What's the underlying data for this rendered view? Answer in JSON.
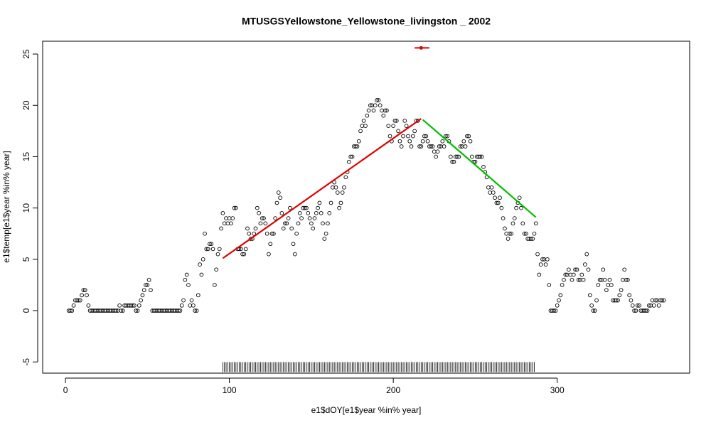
{
  "chart_data": {
    "type": "scatter",
    "title": "MTUSGSYellowstone_Yellowstone_livingston _ 2002",
    "x_label": "e1$dOY[e1$year %in% year]",
    "y_label": "e1$temp[e1$year %in% year]",
    "xlim": [
      -13.9,
      380.8
    ],
    "ylim": [
      -6.09,
      26.25
    ],
    "xticks": [
      0,
      100,
      200,
      300
    ],
    "yticks": [
      -5,
      0,
      5,
      10,
      15,
      20,
      25
    ],
    "point_color": "#000000",
    "x": [
      2,
      3,
      4,
      5,
      6,
      7,
      8,
      9,
      10,
      11,
      12,
      13,
      14,
      15,
      16,
      17,
      18,
      19,
      20,
      21,
      22,
      23,
      24,
      25,
      26,
      27,
      28,
      29,
      30,
      31,
      32,
      33,
      34,
      35,
      36,
      37,
      38,
      39,
      40,
      41,
      42,
      43,
      44,
      45,
      46,
      47,
      48,
      49,
      50,
      51,
      52,
      53,
      54,
      55,
      56,
      57,
      58,
      59,
      60,
      61,
      62,
      63,
      64,
      65,
      66,
      67,
      68,
      69,
      70,
      71,
      72,
      73,
      74,
      75,
      76,
      77,
      78,
      79,
      80,
      81,
      82,
      83,
      84,
      85,
      86,
      87,
      88,
      89,
      90,
      91,
      92,
      93,
      94,
      95,
      96,
      97,
      98,
      99,
      100,
      101,
      102,
      103,
      104,
      105,
      106,
      107,
      108,
      109,
      110,
      111,
      112,
      113,
      114,
      115,
      116,
      117,
      118,
      119,
      120,
      121,
      122,
      123,
      124,
      125,
      126,
      127,
      128,
      129,
      130,
      131,
      132,
      133,
      134,
      135,
      136,
      137,
      138,
      139,
      140,
      141,
      142,
      143,
      144,
      145,
      146,
      147,
      148,
      149,
      150,
      151,
      152,
      153,
      154,
      155,
      156,
      157,
      158,
      159,
      160,
      161,
      162,
      163,
      164,
      165,
      166,
      167,
      168,
      169,
      170,
      171,
      172,
      173,
      174,
      175,
      176,
      177,
      178,
      179,
      180,
      181,
      182,
      183,
      184,
      185,
      186,
      187,
      188,
      189,
      190,
      191,
      192,
      193,
      194,
      195,
      196,
      197,
      198,
      199,
      200,
      201,
      202,
      203,
      204,
      205,
      206,
      207,
      208,
      209,
      210,
      211,
      212,
      213,
      214,
      215,
      216,
      217,
      218,
      219,
      220,
      221,
      222,
      223,
      224,
      225,
      226,
      227,
      228,
      229,
      230,
      231,
      232,
      233,
      234,
      235,
      236,
      237,
      238,
      239,
      240,
      241,
      242,
      243,
      244,
      245,
      246,
      247,
      248,
      249,
      250,
      251,
      252,
      253,
      254,
      255,
      256,
      257,
      258,
      259,
      260,
      261,
      262,
      263,
      264,
      265,
      266,
      267,
      268,
      269,
      270,
      271,
      272,
      273,
      274,
      275,
      276,
      277,
      278,
      279,
      280,
      281,
      282,
      283,
      284,
      285,
      286,
      287,
      288,
      289,
      290,
      291,
      292,
      293,
      294,
      295,
      296,
      297,
      298,
      299,
      300,
      301,
      302,
      303,
      304,
      305,
      306,
      307,
      308,
      309,
      310,
      311,
      312,
      313,
      314,
      315,
      316,
      317,
      318,
      319,
      320,
      321,
      322,
      323,
      324,
      325,
      326,
      327,
      328,
      329,
      330,
      331,
      332,
      333,
      334,
      335,
      336,
      337,
      338,
      339,
      340,
      341,
      342,
      343,
      344,
      345,
      346,
      347,
      348,
      349,
      350,
      351,
      352,
      353,
      354,
      355,
      356,
      357,
      358,
      359,
      360,
      361,
      362,
      363,
      364,
      365
    ],
    "values": [
      0,
      0,
      0,
      0.5,
      1,
      1,
      1,
      1,
      1.5,
      2,
      2,
      1.5,
      0.5,
      0,
      0,
      0,
      0,
      0,
      0,
      0,
      0,
      0,
      0,
      0,
      0,
      0,
      0,
      0,
      0,
      0,
      0,
      0.5,
      0,
      0,
      0.5,
      0.5,
      0.5,
      0.5,
      0.5,
      0.5,
      0.5,
      0,
      0,
      0.5,
      1,
      1.5,
      2,
      2.5,
      2.5,
      3,
      2,
      0,
      0,
      0,
      0,
      0,
      0,
      0,
      0,
      0,
      0,
      0,
      0,
      0,
      0,
      0,
      0,
      0,
      0,
      0.5,
      1,
      3,
      3.5,
      2.5,
      0.5,
      1,
      0.5,
      0,
      0,
      1.5,
      4.5,
      3.5,
      5,
      7.5,
      6,
      6,
      6.5,
      6.5,
      6,
      2.5,
      4,
      5.5,
      6,
      8,
      9.5,
      8.5,
      9,
      8.5,
      9,
      8.5,
      9,
      10,
      10,
      6,
      6,
      6,
      5.5,
      5.5,
      6,
      8,
      7.5,
      7,
      7,
      7.5,
      8,
      10,
      9.5,
      8.5,
      9,
      9,
      8.5,
      7.5,
      5.5,
      6.5,
      7.5,
      7.5,
      9,
      10.5,
      11.5,
      11,
      9.5,
      8,
      8.5,
      8.5,
      9,
      10,
      8,
      6.5,
      5.5,
      7.5,
      8.5,
      9.5,
      9,
      10,
      10,
      10,
      9.5,
      9,
      8.5,
      8,
      9,
      9.5,
      10,
      10.5,
      9.5,
      8.5,
      7,
      7.5,
      8.5,
      9.5,
      10.5,
      12,
      12.5,
      12,
      11.5,
      10,
      10.5,
      11.5,
      12,
      13,
      13.5,
      14.5,
      15,
      15,
      16,
      16,
      16,
      16.5,
      17.5,
      18,
      18.5,
      18,
      19,
      19.5,
      20,
      20,
      19.5,
      20,
      20.5,
      20.5,
      20,
      19.5,
      19,
      19.5,
      19.5,
      18,
      17,
      16.5,
      18,
      18.5,
      18.5,
      17.5,
      16.5,
      16,
      17,
      18.5,
      18,
      17,
      16.5,
      16,
      17,
      17.5,
      18.5,
      18.5,
      16,
      16,
      16.5,
      17,
      17,
      16.5,
      16,
      16,
      16,
      15.5,
      15,
      15.5,
      16,
      16,
      16.5,
      16,
      17,
      17,
      16.5,
      15,
      14.5,
      14.5,
      15,
      15,
      15,
      16,
      16,
      16.5,
      16,
      17,
      17,
      16.5,
      15,
      14.5,
      14.5,
      15,
      15,
      15,
      15,
      14,
      13.5,
      13,
      12,
      11.5,
      12,
      11.5,
      11,
      10.5,
      10.5,
      11,
      10,
      9,
      8,
      7.5,
      7,
      7.5,
      7.5,
      8.5,
      9,
      10,
      10.5,
      11,
      10,
      8.5,
      7.5,
      7.5,
      7,
      7,
      7,
      7,
      7.5,
      8.5,
      5.5,
      3.5,
      4.5,
      5,
      5,
      4.5,
      5,
      2.5,
      0,
      0,
      0,
      0,
      0.5,
      1,
      1.5,
      2.5,
      3,
      3.5,
      3.5,
      4,
      3.5,
      3,
      3.5,
      4,
      4,
      3,
      3,
      3.5,
      3,
      4.5,
      5.5,
      4,
      1.5,
      0.5,
      0,
      0,
      1,
      2.5,
      3,
      3,
      4,
      3,
      2,
      2.5,
      3,
      2.5,
      1,
      1,
      1,
      1,
      1.5,
      2,
      3,
      4,
      3,
      3,
      1.5,
      1,
      0.5,
      0,
      0,
      0.5,
      0.5,
      0,
      0,
      0,
      0,
      0,
      0.5,
      0.5,
      1,
      0.5,
      1,
      1,
      0.5,
      1,
      1,
      1
    ],
    "lines": [
      {
        "color": "#e00000",
        "x": [
          96,
          217
        ],
        "values": [
          5.1,
          18.7
        ]
      },
      {
        "color": "#00c000",
        "x": [
          218,
          287
        ],
        "values": [
          18.6,
          9.1
        ]
      }
    ],
    "error_bar": {
      "color": "#e00000",
      "x": 217,
      "y": 25.6,
      "xmin": 213,
      "xmax": 222
    },
    "rug": {
      "y": -5.5,
      "xrange": [
        96,
        286
      ]
    }
  }
}
